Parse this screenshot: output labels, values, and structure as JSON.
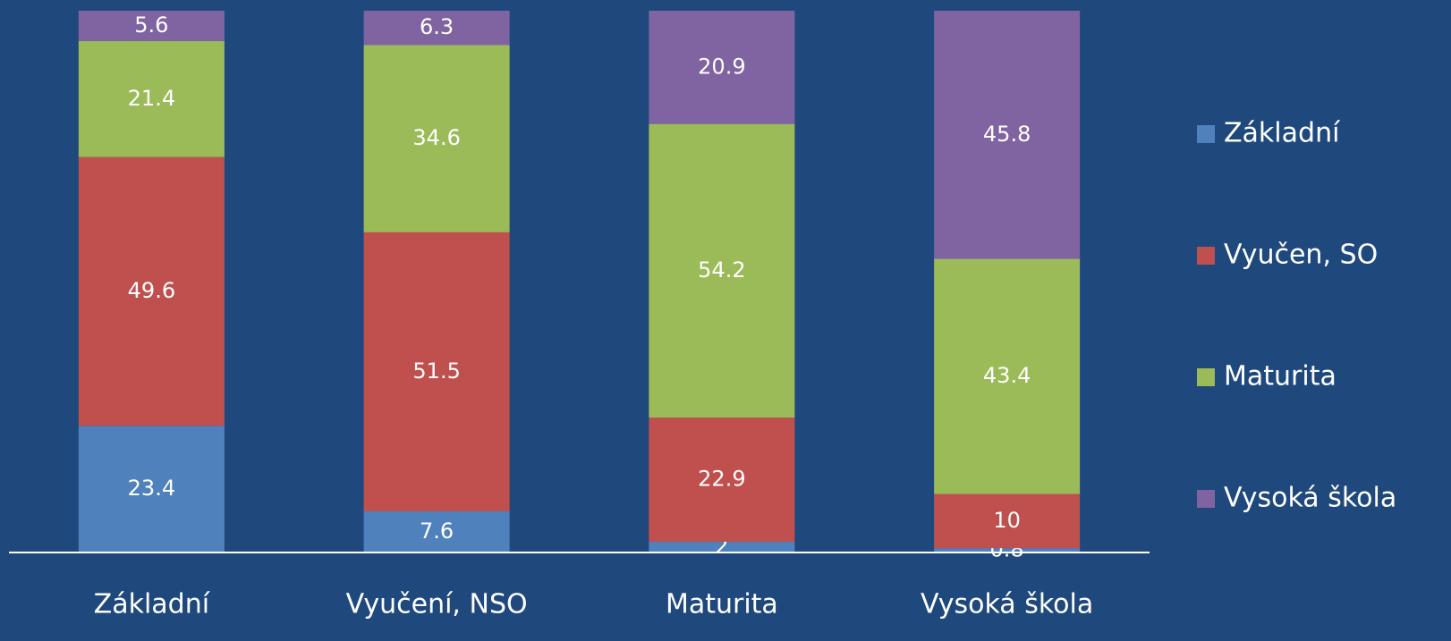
{
  "chart_data": {
    "type": "stacked_bar",
    "categories": [
      "Základní",
      "Vyučení, NSO",
      "Maturita",
      "Vysoká škola"
    ],
    "series": [
      {
        "name": "Základní",
        "color": "#4f81bd",
        "values": [
          23.4,
          7.6,
          2,
          0.8
        ]
      },
      {
        "name": "Vyučen, SO",
        "color": "#c0504d",
        "values": [
          49.6,
          51.5,
          22.9,
          10
        ]
      },
      {
        "name": "Maturita",
        "color": "#9bbb59",
        "values": [
          21.4,
          34.6,
          54.2,
          43.4
        ]
      },
      {
        "name": "Vysoká škola",
        "color": "#8064a2",
        "values": [
          5.6,
          6.3,
          20.9,
          45.8
        ]
      }
    ],
    "ylim": [
      0,
      100
    ],
    "legend": "right"
  }
}
